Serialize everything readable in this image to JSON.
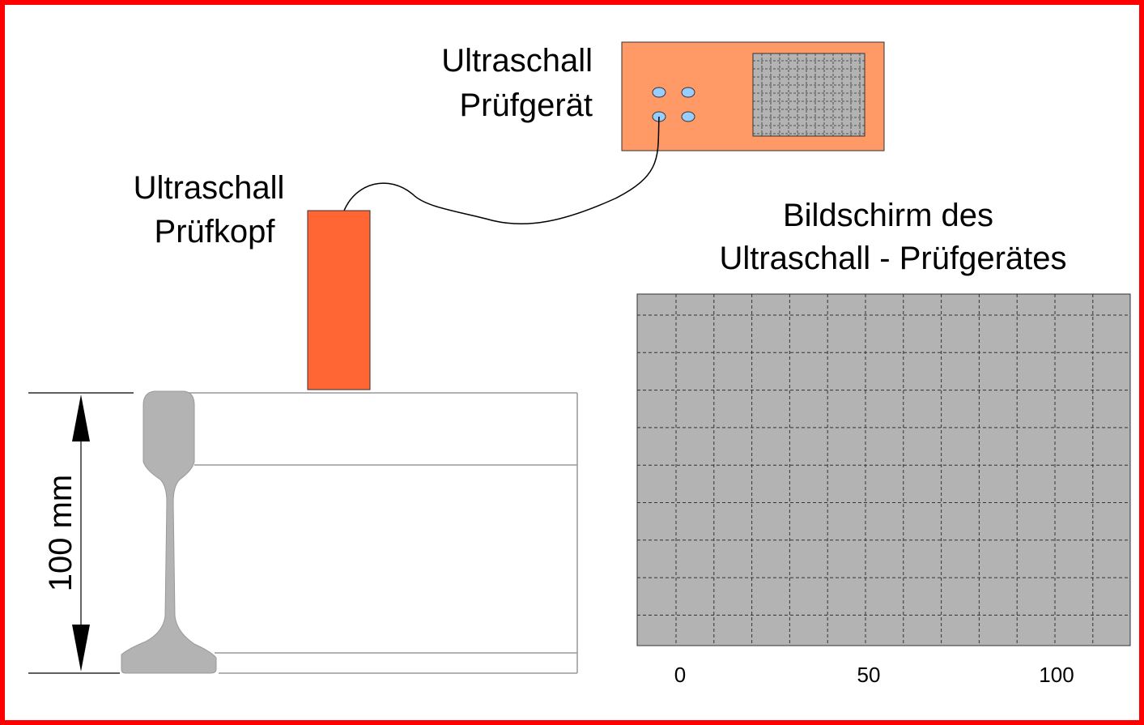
{
  "device": {
    "label_lines": [
      "Ultraschall",
      "Prüfgerät"
    ]
  },
  "probe": {
    "label_lines": [
      "Ultraschall",
      "Prüfkopf"
    ]
  },
  "dimension": {
    "label": "100 mm"
  },
  "screen": {
    "title_lines": [
      "Bildschirm des",
      "Ultraschall - Prüfgerätes"
    ],
    "axis_labels": [
      0,
      50,
      100
    ]
  }
}
